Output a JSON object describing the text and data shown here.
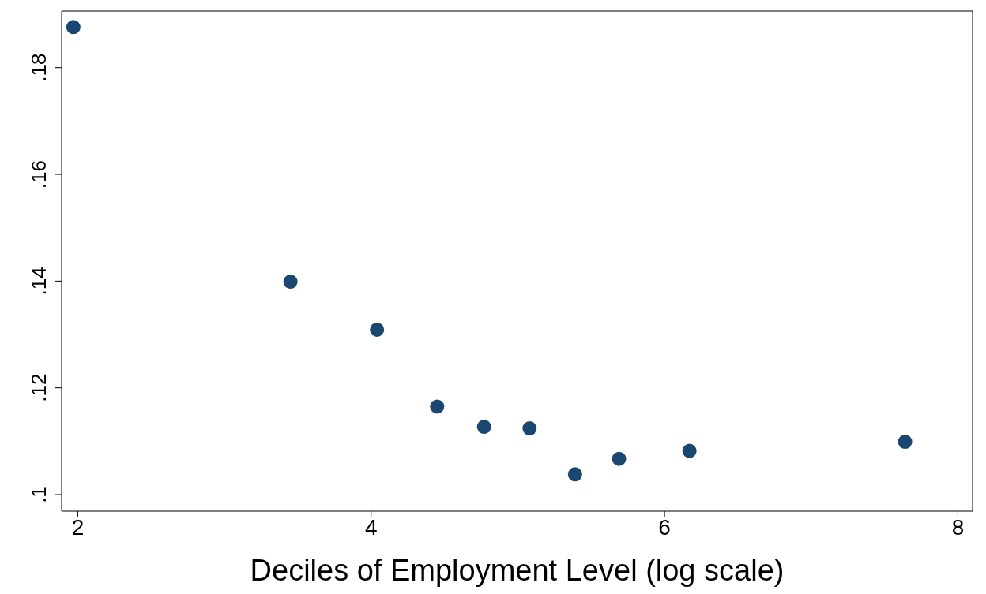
{
  "chart_data": {
    "type": "scatter",
    "xlabel": "Deciles of Employment Level (log scale)",
    "x": [
      1.97,
      3.45,
      4.04,
      4.45,
      4.77,
      5.08,
      5.39,
      5.69,
      6.17,
      7.64
    ],
    "values": [
      0.1876,
      0.1399,
      0.1309,
      0.1165,
      0.1127,
      0.1124,
      0.1038,
      0.1067,
      0.1082,
      0.1099
    ],
    "color": "#1a476f",
    "marker": "circle",
    "grid": false,
    "legend": false,
    "xlim": [
      1.89,
      8.1
    ],
    "xticks": [
      2,
      4,
      6,
      8
    ],
    "ylim": [
      0.0969,
      0.1906
    ],
    "yticks": [
      {
        "value": 0.1,
        "label": ".1"
      },
      {
        "value": 0.12,
        "label": ".12"
      },
      {
        "value": 0.14,
        "label": ".14"
      },
      {
        "value": 0.16,
        "label": ".16"
      },
      {
        "value": 0.18,
        "label": ".18"
      }
    ]
  }
}
